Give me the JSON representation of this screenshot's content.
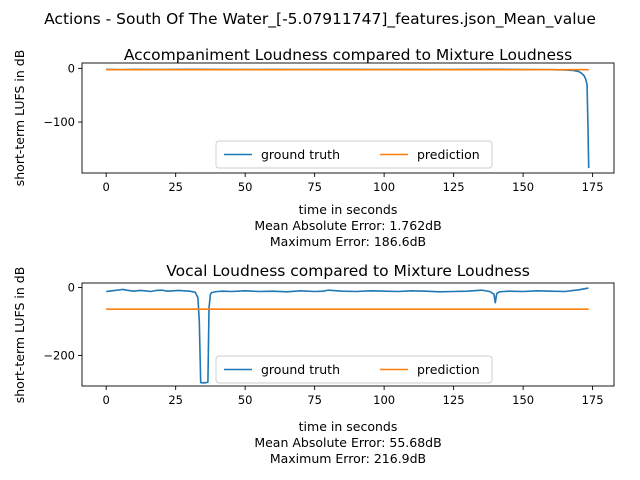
{
  "suptitle": "Actions - South Of The Water_[-5.07911747]_features.json_Mean_value",
  "chart_data": [
    {
      "type": "line",
      "title": "Accompaniment Loudness compared to Mixture Loudness",
      "xlabel": "time in seconds",
      "ylabel": "short-term LUFS in dB",
      "xlim": [
        -8.7,
        182.7
      ],
      "ylim": [
        -195,
        10
      ],
      "xticks": [
        0,
        25,
        50,
        75,
        100,
        125,
        150,
        175
      ],
      "yticks": [
        0,
        -100
      ],
      "grid": false,
      "legend": {
        "placement": "lower center",
        "ncol": 2
      },
      "series": [
        {
          "name": "ground truth",
          "color": "#1f77b4",
          "x": [
            0,
            5,
            10,
            20,
            30,
            40,
            50,
            60,
            70,
            80,
            90,
            100,
            110,
            120,
            130,
            140,
            150,
            160,
            165,
            168,
            170,
            171,
            172,
            172.5,
            173,
            173.3,
            173.6
          ],
          "y": [
            -2,
            -2.5,
            -2,
            -2.2,
            -1.8,
            -2,
            -2.2,
            -2,
            -2.1,
            -2,
            -2,
            -2.2,
            -2,
            -2.1,
            -2,
            -1.8,
            -2.2,
            -2.5,
            -3,
            -4,
            -6,
            -9,
            -14,
            -20,
            -30,
            -100,
            -186
          ]
        },
        {
          "name": "prediction",
          "color": "#ff7f0e",
          "x": [
            0,
            173.6
          ],
          "y": [
            -2.5,
            -2.5
          ]
        }
      ],
      "annotations": [
        "Mean Absolute Error: 1.762dB",
        "Maximum Error: 186.6dB"
      ]
    },
    {
      "type": "line",
      "title": "Vocal Loudness compared to Mixture Loudness",
      "xlabel": "time in seconds",
      "ylabel": "short-term LUFS in dB",
      "xlim": [
        -8.7,
        182.7
      ],
      "ylim": [
        -290,
        13
      ],
      "xticks": [
        0,
        25,
        50,
        75,
        100,
        125,
        150,
        175
      ],
      "yticks": [
        0,
        -200
      ],
      "grid": false,
      "legend": {
        "placement": "lower center",
        "ncol": 2
      },
      "series": [
        {
          "name": "ground truth",
          "color": "#1f77b4",
          "x": [
            0,
            2,
            4,
            6,
            8,
            10,
            12,
            14,
            16,
            18,
            20,
            22,
            24,
            26,
            28,
            30,
            32,
            33,
            33.5,
            34,
            35,
            36,
            36.6,
            37,
            37.5,
            38,
            40,
            42,
            45,
            50,
            55,
            60,
            65,
            70,
            75,
            78,
            80,
            85,
            90,
            95,
            100,
            105,
            110,
            115,
            120,
            125,
            130,
            135,
            138,
            139.5,
            140,
            140.5,
            141.5,
            143,
            145,
            150,
            155,
            160,
            165,
            170,
            172,
            173.5
          ],
          "y": [
            -12,
            -10,
            -8,
            -6,
            -9,
            -11,
            -9,
            -10,
            -12,
            -9,
            -8,
            -11,
            -10,
            -9,
            -10,
            -11,
            -14,
            -30,
            -100,
            -280,
            -281,
            -280,
            -279,
            -60,
            -20,
            -15,
            -12,
            -11,
            -12,
            -10,
            -12,
            -11,
            -13,
            -10,
            -12,
            -11,
            -8,
            -11,
            -12,
            -10,
            -11,
            -12,
            -10,
            -11,
            -13,
            -12,
            -11,
            -8,
            -12,
            -20,
            -45,
            -18,
            -13,
            -12,
            -11,
            -12,
            -10,
            -11,
            -12,
            -7,
            -4,
            -2
          ]
        },
        {
          "name": "prediction",
          "color": "#ff7f0e",
          "x": [
            0,
            173.6
          ],
          "y": [
            -64,
            -64
          ]
        }
      ],
      "annotations": [
        "Mean Absolute Error: 55.68dB",
        "Maximum Error: 216.9dB"
      ]
    }
  ]
}
